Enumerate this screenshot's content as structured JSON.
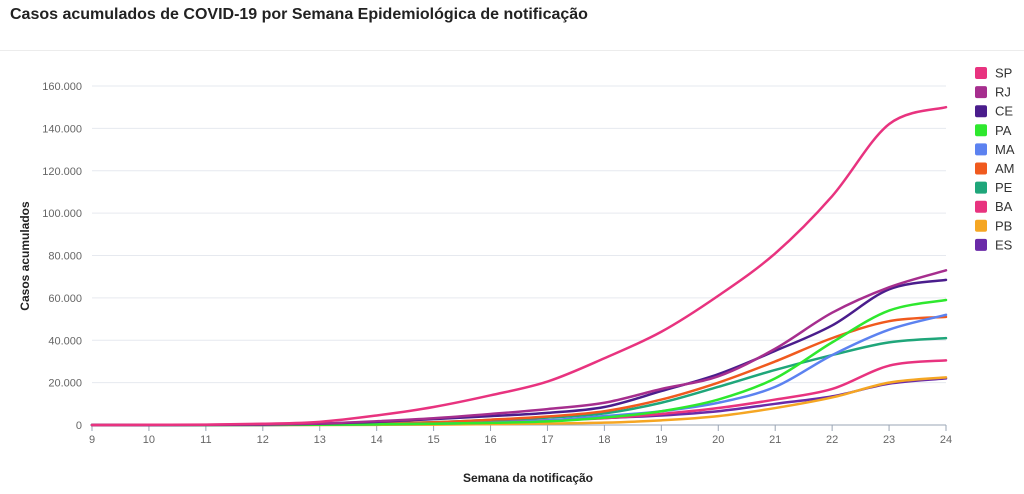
{
  "chart_data": {
    "type": "line",
    "title": "Casos acumulados de COVID-19 por Semana Epidemiológica de notificação",
    "xlabel": "Semana da notificação",
    "ylabel": "Casos acumulados",
    "x": [
      9,
      10,
      11,
      12,
      13,
      14,
      15,
      16,
      17,
      18,
      19,
      20,
      21,
      22,
      23,
      24
    ],
    "x_ticks": [
      "9",
      "10",
      "11",
      "12",
      "13",
      "14",
      "15",
      "16",
      "17",
      "18",
      "19",
      "20",
      "21",
      "22",
      "23",
      "24"
    ],
    "ylim": [
      0,
      160000
    ],
    "y_ticks": [
      {
        "value": 0,
        "label": "0"
      },
      {
        "value": 20000,
        "label": "20.000"
      },
      {
        "value": 40000,
        "label": "40.000"
      },
      {
        "value": 60000,
        "label": "60.000"
      },
      {
        "value": 80000,
        "label": "80.000"
      },
      {
        "value": 100000,
        "label": "100.000"
      },
      {
        "value": 120000,
        "label": "120.000"
      },
      {
        "value": 140000,
        "label": "140.000"
      },
      {
        "value": 160000,
        "label": "160.000"
      }
    ],
    "grid": true,
    "legend_position": "right",
    "series": [
      {
        "name": "SP",
        "color": "#e8337f",
        "values": [
          0,
          100,
          200,
          600,
          1500,
          4500,
          8500,
          14000,
          20500,
          31500,
          44000,
          61000,
          81000,
          108000,
          142000,
          150000
        ]
      },
      {
        "name": "RJ",
        "color": "#a62e8e",
        "values": [
          0,
          30,
          100,
          300,
          700,
          1800,
          3200,
          5200,
          7500,
          10500,
          17000,
          23000,
          36000,
          53000,
          65000,
          73000
        ]
      },
      {
        "name": "CE",
        "color": "#4a1d8c",
        "values": [
          0,
          20,
          60,
          200,
          600,
          1500,
          2800,
          4200,
          5700,
          8500,
          16000,
          24000,
          35000,
          47000,
          64000,
          68500
        ]
      },
      {
        "name": "PA",
        "color": "#2ee82e",
        "values": [
          0,
          0,
          10,
          50,
          100,
          300,
          600,
          1000,
          1700,
          3500,
          6500,
          12000,
          22000,
          39000,
          54000,
          59000
        ]
      },
      {
        "name": "MA",
        "color": "#5c82f0",
        "values": [
          0,
          0,
          10,
          40,
          100,
          300,
          600,
          1100,
          2200,
          4200,
          6500,
          10500,
          18000,
          33000,
          45000,
          52000
        ]
      },
      {
        "name": "AM",
        "color": "#f05a1e",
        "values": [
          0,
          10,
          30,
          100,
          300,
          700,
          1300,
          2500,
          4000,
          6500,
          12000,
          20000,
          30000,
          41000,
          49000,
          51000
        ]
      },
      {
        "name": "PE",
        "color": "#1fa67a",
        "values": [
          0,
          10,
          20,
          80,
          200,
          600,
          1300,
          2400,
          3500,
          5500,
          10500,
          18000,
          26000,
          33000,
          39000,
          41000
        ]
      },
      {
        "name": "BA",
        "color": "#e8337f",
        "values": [
          0,
          10,
          20,
          60,
          150,
          400,
          800,
          1400,
          2200,
          3200,
          5200,
          8000,
          12000,
          17000,
          28000,
          30500
        ]
      },
      {
        "name": "PB",
        "color": "#f5a623",
        "values": [
          0,
          0,
          0,
          10,
          30,
          80,
          200,
          400,
          700,
          1100,
          2200,
          4200,
          8000,
          13000,
          20000,
          22500
        ]
      },
      {
        "name": "ES",
        "color": "#6a2aa8",
        "values": [
          0,
          10,
          20,
          60,
          150,
          400,
          800,
          1300,
          2200,
          3300,
          4500,
          6500,
          10000,
          13500,
          19500,
          22000
        ]
      }
    ]
  }
}
